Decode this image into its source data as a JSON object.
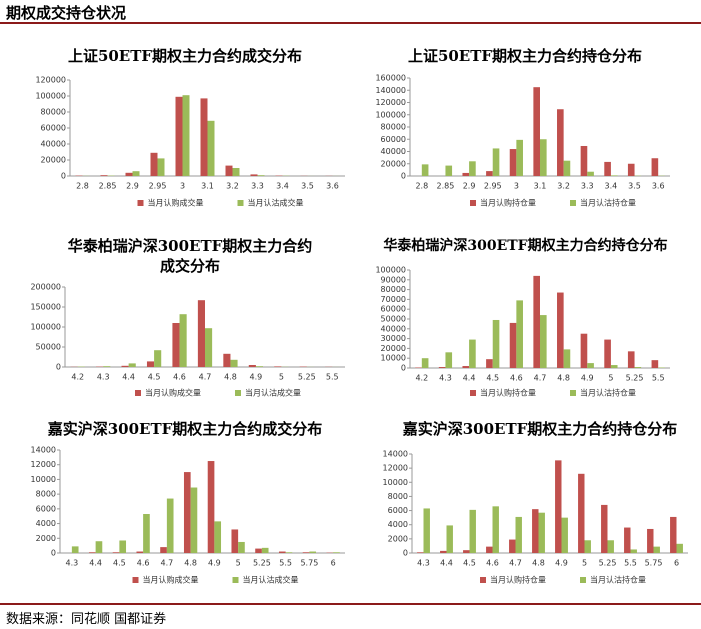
{
  "header": {
    "title": "期权成交持仓状况"
  },
  "footer": {
    "source": "数据来源：同花顺 国都证券"
  },
  "chart_data": [
    {
      "type": "bar",
      "title": "上证50ETF期权主力合约成交分布",
      "categories": [
        "2.8",
        "2.85",
        "2.9",
        "2.95",
        "3",
        "3.1",
        "3.2",
        "3.3",
        "3.4",
        "3.5",
        "3.6"
      ],
      "series": [
        {
          "name": "当月认购成交量",
          "color": "#c0504d",
          "values": [
            500,
            1000,
            4000,
            29000,
            99000,
            97000,
            13000,
            2000,
            500,
            200,
            200
          ]
        },
        {
          "name": "当月认沽成交量",
          "color": "#9bbb59",
          "values": [
            200,
            500,
            6000,
            22000,
            101000,
            69000,
            10000,
            1000,
            300,
            100,
            100
          ]
        }
      ],
      "ylim": [
        0,
        120000
      ],
      "yticks": [
        0,
        20000,
        40000,
        60000,
        80000,
        100000,
        120000
      ]
    },
    {
      "type": "bar",
      "title": "上证50ETF期权主力合约持仓分布",
      "categories": [
        "2.8",
        "2.85",
        "2.9",
        "2.95",
        "3",
        "3.1",
        "3.2",
        "3.3",
        "3.4",
        "3.5",
        "3.6"
      ],
      "series": [
        {
          "name": "当月认购持仓量",
          "color": "#c0504d",
          "values": [
            0,
            0,
            5000,
            8000,
            44000,
            145000,
            109000,
            49000,
            23000,
            20000,
            29000
          ]
        },
        {
          "name": "当月认沽持仓量",
          "color": "#9bbb59",
          "values": [
            19000,
            17000,
            24000,
            45000,
            59000,
            60000,
            25000,
            7000,
            1000,
            500,
            500
          ]
        }
      ],
      "ylim": [
        0,
        160000
      ],
      "yticks": [
        0,
        20000,
        40000,
        60000,
        80000,
        100000,
        120000,
        140000,
        160000
      ]
    },
    {
      "type": "bar",
      "title": "华泰柏瑞沪深300ETF期权主力合约成交分布",
      "categories": [
        "4.2",
        "4.3",
        "4.4",
        "4.5",
        "4.6",
        "4.7",
        "4.8",
        "4.9",
        "5",
        "5.25",
        "5.5"
      ],
      "series": [
        {
          "name": "当月认购成交量",
          "color": "#c0504d",
          "values": [
            500,
            1000,
            3000,
            14000,
            110000,
            167000,
            33000,
            5000,
            1500,
            1000,
            500
          ]
        },
        {
          "name": "当月认沽成交量",
          "color": "#9bbb59",
          "values": [
            1000,
            2000,
            9000,
            42000,
            132000,
            97000,
            18000,
            2000,
            500,
            300,
            200
          ]
        }
      ],
      "ylim": [
        0,
        200000
      ],
      "yticks": [
        0,
        50000,
        100000,
        150000,
        200000
      ]
    },
    {
      "type": "bar",
      "title": "华泰柏瑞沪深300ETF期权主力合约持仓分布",
      "categories": [
        "4.2",
        "4.3",
        "4.4",
        "4.5",
        "4.6",
        "4.7",
        "4.8",
        "4.9",
        "5",
        "5.25",
        "5.5"
      ],
      "series": [
        {
          "name": "当月认购持仓量",
          "color": "#c0504d",
          "values": [
            500,
            1000,
            2000,
            9000,
            46000,
            94000,
            77000,
            35000,
            29000,
            17000,
            8000
          ]
        },
        {
          "name": "当月认沽持仓量",
          "color": "#9bbb59",
          "values": [
            10000,
            16000,
            29000,
            49000,
            69000,
            54000,
            19000,
            5000,
            3000,
            1000,
            500
          ]
        }
      ],
      "ylim": [
        0,
        100000
      ],
      "yticks": [
        0,
        10000,
        20000,
        30000,
        40000,
        50000,
        60000,
        70000,
        80000,
        90000,
        100000
      ]
    },
    {
      "type": "bar",
      "title": "嘉实沪深300ETF期权主力合约成交分布",
      "categories": [
        "4.3",
        "4.4",
        "4.5",
        "4.6",
        "4.7",
        "4.8",
        "4.9",
        "5",
        "5.25",
        "5.5",
        "5.75",
        "6"
      ],
      "series": [
        {
          "name": "当月认购成交量",
          "color": "#c0504d",
          "values": [
            0,
            100,
            100,
            200,
            800,
            11000,
            12500,
            3200,
            600,
            200,
            100,
            50
          ]
        },
        {
          "name": "当月认沽成交量",
          "color": "#9bbb59",
          "values": [
            900,
            1600,
            1700,
            5300,
            7400,
            8900,
            4300,
            1500,
            700,
            100,
            200,
            100
          ]
        }
      ],
      "ylim": [
        0,
        14000
      ],
      "yticks": [
        0,
        2000,
        4000,
        6000,
        8000,
        10000,
        12000,
        14000
      ]
    },
    {
      "type": "bar",
      "title": "嘉实沪深300ETF期权主力合约持仓分布",
      "categories": [
        "4.3",
        "4.4",
        "4.5",
        "4.6",
        "4.7",
        "4.8",
        "4.9",
        "5",
        "5.25",
        "5.5",
        "5.75",
        "6"
      ],
      "series": [
        {
          "name": "当月认购持仓量",
          "color": "#c0504d",
          "values": [
            100,
            300,
            400,
            900,
            1900,
            6200,
            13100,
            11200,
            6800,
            3600,
            3400,
            5100
          ]
        },
        {
          "name": "当月认沽持仓量",
          "color": "#9bbb59",
          "values": [
            6300,
            3900,
            6100,
            6600,
            5100,
            5700,
            5000,
            1800,
            1800,
            500,
            900,
            1300
          ]
        }
      ],
      "ylim": [
        0,
        14000
      ],
      "yticks": [
        0,
        2000,
        4000,
        6000,
        8000,
        10000,
        12000,
        14000
      ]
    }
  ]
}
